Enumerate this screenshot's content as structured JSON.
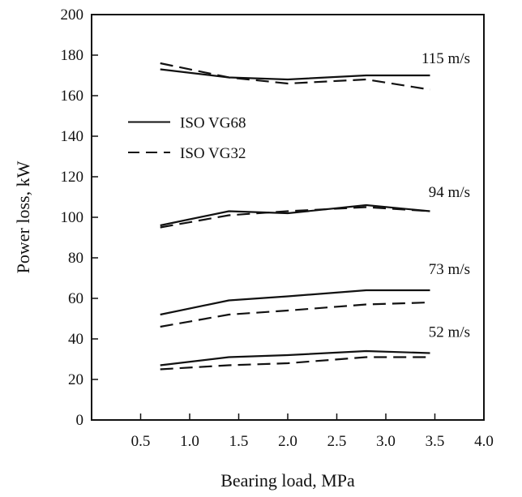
{
  "chart_data": {
    "type": "line",
    "xlabel": "Bearing load, MPa",
    "ylabel": "Power loss, kW",
    "xlim": [
      0,
      4.0
    ],
    "ylim": [
      0,
      200
    ],
    "x_ticks": [
      "0.5",
      "1.0",
      "1.5",
      "2.0",
      "2.5",
      "3.0",
      "3.5",
      "4.0"
    ],
    "y_ticks": [
      "0",
      "20",
      "40",
      "60",
      "80",
      "100",
      "120",
      "140",
      "160",
      "180",
      "200"
    ],
    "grid": false,
    "legend": {
      "placement": "upper-left",
      "entries": [
        {
          "name": "ISO VG68",
          "style": "solid"
        },
        {
          "name": "ISO VG32",
          "style": "dashed"
        }
      ]
    },
    "curve_labels": [
      "115 m/s",
      "94 m/s",
      "73 m/s",
      "52 m/s"
    ],
    "series": [
      {
        "group": "115 m/s",
        "oil": "ISO VG68",
        "style": "solid",
        "x": [
          0.7,
          1.4,
          2.0,
          2.8,
          3.45
        ],
        "y": [
          173,
          169,
          168,
          170,
          170
        ]
      },
      {
        "group": "115 m/s",
        "oil": "ISO VG32",
        "style": "dashed",
        "x": [
          0.7,
          1.4,
          2.0,
          2.8,
          3.45
        ],
        "y": [
          176,
          169,
          166,
          168,
          163
        ]
      },
      {
        "group": "94 m/s",
        "oil": "ISO VG68",
        "style": "solid",
        "x": [
          0.7,
          1.4,
          2.0,
          2.8,
          3.45
        ],
        "y": [
          96,
          103,
          102,
          106,
          103
        ]
      },
      {
        "group": "94 m/s",
        "oil": "ISO VG32",
        "style": "dashed",
        "x": [
          0.7,
          1.4,
          2.0,
          2.8,
          3.45
        ],
        "y": [
          95,
          101,
          103,
          105,
          103
        ]
      },
      {
        "group": "73 m/s",
        "oil": "ISO VG68",
        "style": "solid",
        "x": [
          0.7,
          1.4,
          2.0,
          2.8,
          3.45
        ],
        "y": [
          52,
          59,
          61,
          64,
          64
        ]
      },
      {
        "group": "73 m/s",
        "oil": "ISO VG32",
        "style": "dashed",
        "x": [
          0.7,
          1.4,
          2.0,
          2.8,
          3.45
        ],
        "y": [
          46,
          52,
          54,
          57,
          58
        ]
      },
      {
        "group": "52 m/s",
        "oil": "ISO VG68",
        "style": "solid",
        "x": [
          0.7,
          1.4,
          2.0,
          2.8,
          3.45
        ],
        "y": [
          27,
          31,
          32,
          34,
          33
        ]
      },
      {
        "group": "52 m/s",
        "oil": "ISO VG32",
        "style": "dashed",
        "x": [
          0.7,
          1.4,
          2.0,
          2.8,
          3.45
        ],
        "y": [
          25,
          27,
          28,
          31,
          31
        ]
      }
    ]
  }
}
